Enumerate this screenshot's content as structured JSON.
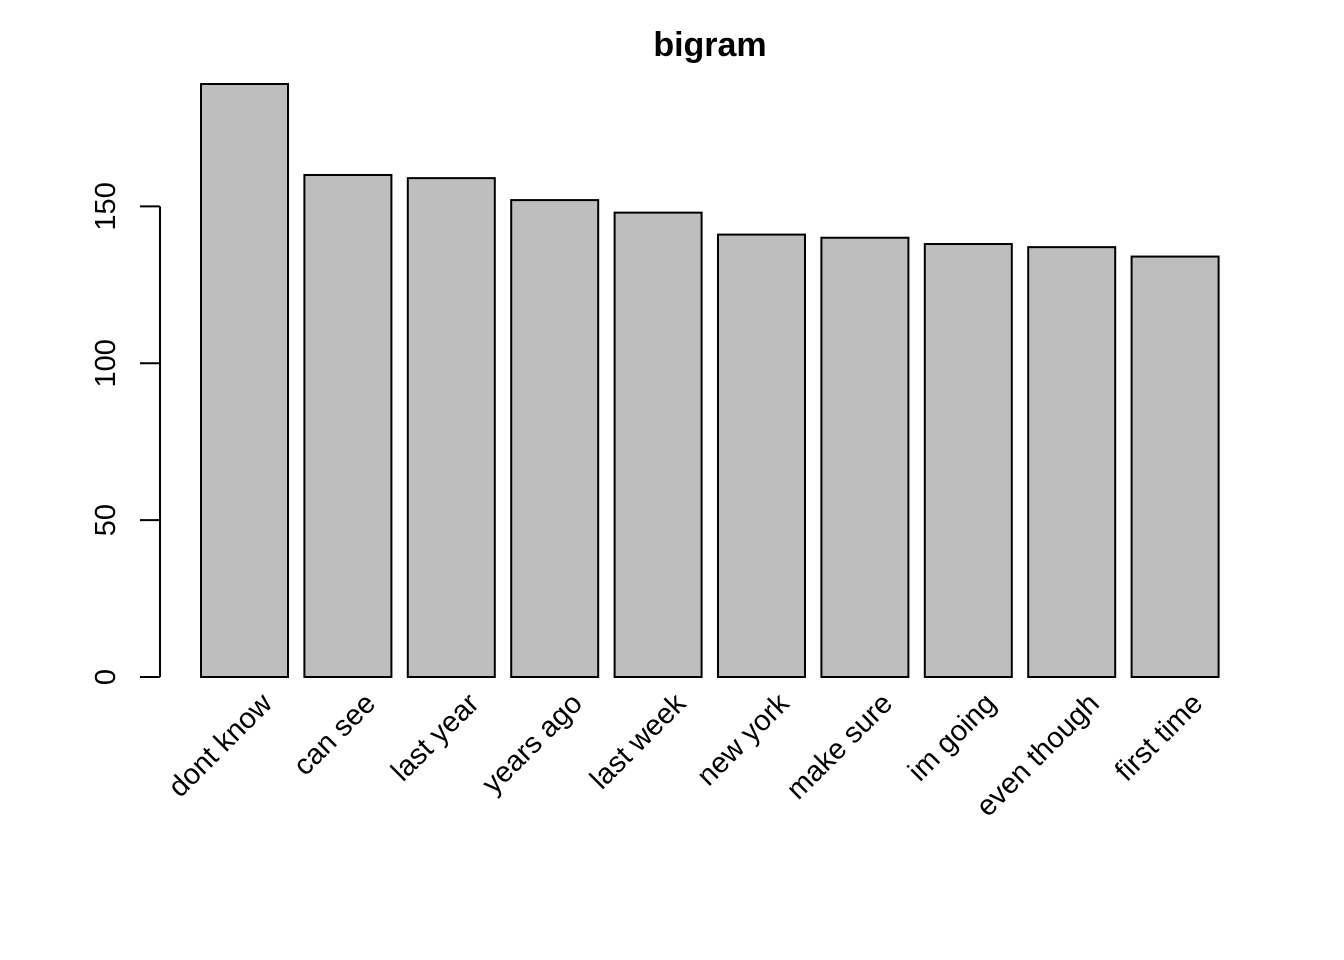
{
  "chart_data": {
    "type": "bar",
    "title": "bigram",
    "xlabel": "",
    "ylabel": "",
    "categories": [
      "dont know",
      "can see",
      "last year",
      "years ago",
      "last week",
      "new york",
      "make sure",
      "im going",
      "even though",
      "first time"
    ],
    "values": [
      189,
      160,
      159,
      152,
      148,
      141,
      140,
      138,
      137,
      134
    ],
    "ylim": [
      0,
      189
    ],
    "yticks": [
      0,
      50,
      100,
      150
    ],
    "ytick_labels": [
      "0",
      "50",
      "100",
      "150"
    ],
    "grid": false,
    "legend": "none",
    "bar_color": "#bebebe",
    "bar_edge_color": "#000000"
  }
}
